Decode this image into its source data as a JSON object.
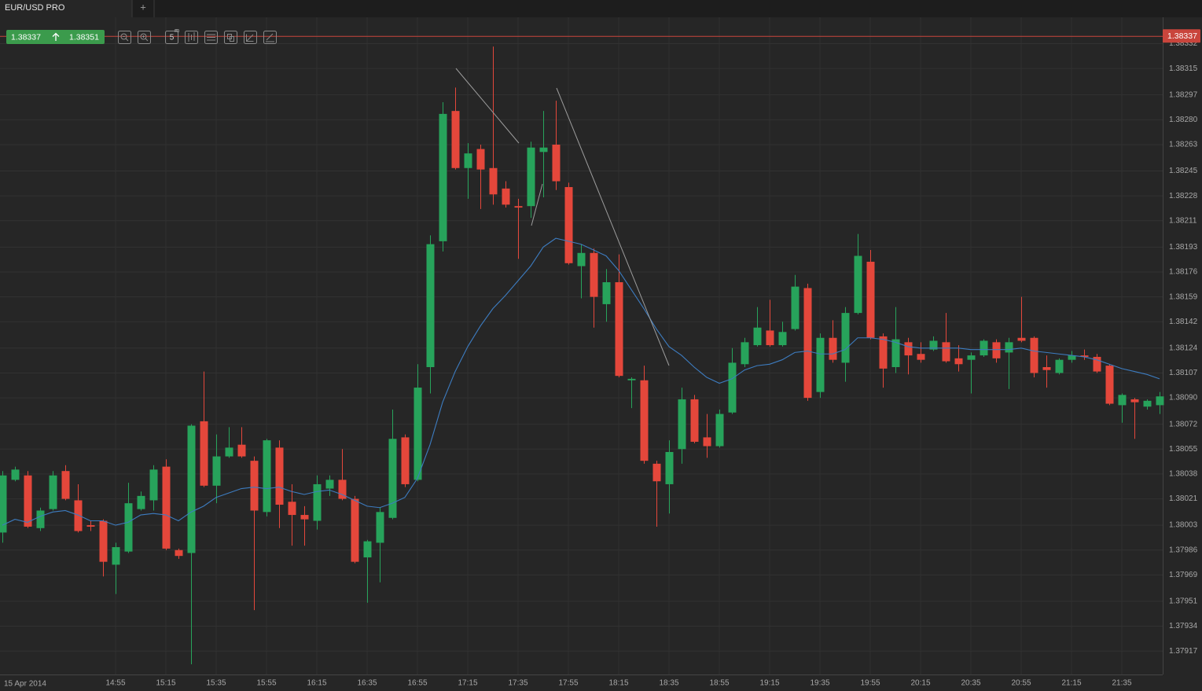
{
  "tab": {
    "title": "EUR/USD PRO",
    "new_tab": "+"
  },
  "quote": {
    "bid": 1.38337,
    "ask": 1.38351
  },
  "toolbar": {
    "interval": "5",
    "interval_unit": "m"
  },
  "chart_data": {
    "type": "candlestick",
    "date_label": "15 Apr 2014",
    "categories": [
      null,
      null,
      null,
      null,
      null,
      null,
      null,
      null,
      null,
      "14:55",
      null,
      null,
      null,
      "15:15",
      null,
      null,
      null,
      "15:35",
      null,
      null,
      null,
      "15:55",
      null,
      null,
      null,
      "16:15",
      null,
      null,
      null,
      "16:35",
      null,
      null,
      null,
      "16:55",
      null,
      null,
      null,
      "17:15",
      null,
      null,
      null,
      "17:35",
      null,
      null,
      null,
      "17:55",
      null,
      null,
      null,
      "18:15",
      null,
      null,
      null,
      "18:35",
      null,
      null,
      null,
      "18:55",
      null,
      null,
      null,
      "19:15",
      null,
      null,
      null,
      "19:35",
      null,
      null,
      null,
      "19:55",
      null,
      null,
      null,
      "20:15",
      null,
      null,
      null,
      "20:35",
      null,
      null,
      null,
      "20:55",
      null,
      null,
      null,
      "21:15",
      null,
      null,
      null,
      "21:35",
      null,
      null,
      null
    ],
    "open": [
      1.37998,
      1.38034,
      1.38037,
      1.38001,
      1.38014,
      1.3804,
      1.3802,
      1.38003,
      1.38006,
      1.37976,
      1.37985,
      1.38014,
      1.3802,
      1.38043,
      1.37986,
      1.37984,
      1.38074,
      1.3803,
      1.3805,
      1.38058,
      1.38047,
      1.38012,
      1.38056,
      1.38019,
      1.3801,
      1.38006,
      1.38028,
      1.38034,
      1.38021,
      1.37981,
      1.37991,
      1.38008,
      1.38063,
      1.38034,
      1.38111,
      1.38197,
      1.38286,
      1.38247,
      1.3826,
      1.38247,
      1.38233,
      1.38221,
      1.38221,
      1.38258,
      1.38263,
      1.38234,
      1.3818,
      1.38189,
      1.38154,
      1.38169,
      1.38102,
      1.38102,
      1.38045,
      1.38031,
      1.38055,
      1.38089,
      1.38063,
      1.38057,
      1.3808,
      1.38113,
      1.38126,
      1.38136,
      1.38126,
      1.38137,
      1.38165,
      1.38094,
      1.38131,
      1.38114,
      1.38148,
      1.38183,
      1.38132,
      1.38111,
      1.38128,
      1.3812,
      1.38123,
      1.38128,
      1.38117,
      1.38116,
      1.38119,
      1.38128,
      1.38121,
      1.38131,
      1.38131,
      1.38111,
      1.38107,
      1.38116,
      1.38119,
      1.38118,
      1.38112,
      1.38085,
      1.38089,
      1.38084,
      1.38085
    ],
    "high": [
      1.3804,
      1.38043,
      1.3804,
      1.38015,
      1.3804,
      1.38044,
      1.38031,
      1.38006,
      1.38007,
      1.37991,
      1.38032,
      1.38026,
      1.38044,
      1.38048,
      1.37987,
      1.38072,
      1.38108,
      1.38065,
      1.3807,
      1.3807,
      1.3805,
      1.38062,
      1.38061,
      1.38031,
      1.38016,
      1.38037,
      1.38037,
      1.38055,
      1.38023,
      1.37993,
      1.38015,
      1.38082,
      1.38065,
      1.38113,
      1.38201,
      1.38292,
      1.38302,
      1.38264,
      1.38263,
      1.3833,
      1.38238,
      1.38226,
      1.38265,
      1.38286,
      1.38293,
      1.38237,
      1.38195,
      1.38192,
      1.38178,
      1.38188,
      1.38104,
      1.38112,
      1.38047,
      1.38061,
      1.38097,
      1.38092,
      1.38079,
      1.38082,
      1.38124,
      1.38131,
      1.38152,
      1.38157,
      1.38142,
      1.38174,
      1.38168,
      1.38134,
      1.38143,
      1.38152,
      1.38202,
      1.38191,
      1.38134,
      1.38152,
      1.38131,
      1.38128,
      1.38132,
      1.38148,
      1.38126,
      1.38121,
      1.3813,
      1.3813,
      1.38131,
      1.38159,
      1.38132,
      1.38119,
      1.38117,
      1.38122,
      1.38123,
      1.3812,
      1.38113,
      1.38093,
      1.3809,
      1.38089,
      1.38094
    ],
    "low": [
      1.37991,
      1.38033,
      1.38001,
      1.37999,
      1.38013,
      1.3802,
      1.37998,
      1.37999,
      1.37968,
      1.37956,
      1.37984,
      1.38013,
      1.38013,
      1.37986,
      1.3798,
      1.37908,
      1.38029,
      1.38018,
      1.38049,
      1.38049,
      1.37945,
      1.38009,
      1.38001,
      1.37989,
      1.37989,
      1.38,
      1.38023,
      1.3802,
      1.37977,
      1.3795,
      1.37964,
      1.38007,
      1.38029,
      1.38033,
      1.38093,
      1.3819,
      1.38246,
      1.38226,
      1.38219,
      1.38222,
      1.3822,
      1.38185,
      1.38213,
      1.38227,
      1.38232,
      1.38181,
      1.38158,
      1.38138,
      1.38142,
      1.38104,
      1.38083,
      1.38045,
      1.38002,
      1.38011,
      1.38045,
      1.38059,
      1.38049,
      1.38056,
      1.38079,
      1.38111,
      1.38125,
      1.38125,
      1.38125,
      1.38136,
      1.38088,
      1.3809,
      1.38114,
      1.38101,
      1.38147,
      1.3813,
      1.38097,
      1.38107,
      1.38106,
      1.38114,
      1.38122,
      1.38114,
      1.38108,
      1.38093,
      1.38118,
      1.38114,
      1.38096,
      1.38128,
      1.38104,
      1.38097,
      1.38106,
      1.38114,
      1.38116,
      1.38107,
      1.38085,
      1.38073,
      1.38062,
      1.38082,
      1.38079
    ],
    "close": [
      1.38037,
      1.38041,
      1.38002,
      1.38013,
      1.38037,
      1.38021,
      1.37999,
      1.38002,
      1.37978,
      1.37988,
      1.38018,
      1.38023,
      1.38041,
      1.37987,
      1.37982,
      1.38071,
      1.3803,
      1.3805,
      1.38056,
      1.3805,
      1.38013,
      1.38061,
      1.38017,
      1.3801,
      1.38007,
      1.38031,
      1.38034,
      1.38021,
      1.37978,
      1.37992,
      1.38012,
      1.38062,
      1.38031,
      1.38097,
      1.38195,
      1.38284,
      1.38247,
      1.38257,
      1.38246,
      1.38229,
      1.38222,
      1.3822,
      1.38261,
      1.38261,
      1.38238,
      1.38182,
      1.38189,
      1.38159,
      1.38169,
      1.38105,
      1.38103,
      1.38047,
      1.38033,
      1.38053,
      1.38089,
      1.3806,
      1.38057,
      1.38079,
      1.38114,
      1.38128,
      1.38138,
      1.38126,
      1.38135,
      1.38166,
      1.3809,
      1.38131,
      1.38116,
      1.38148,
      1.38187,
      1.38131,
      1.3811,
      1.3813,
      1.38119,
      1.38116,
      1.38129,
      1.38115,
      1.38113,
      1.38119,
      1.38129,
      1.38117,
      1.38128,
      1.38129,
      1.38107,
      1.38109,
      1.38116,
      1.38119,
      1.38118,
      1.38108,
      1.38086,
      1.38092,
      1.38087,
      1.38088,
      1.38091
    ],
    "ma": {
      "color": "#3d7cc0",
      "values": [
        1.38003,
        1.38007,
        1.38005,
        1.38009,
        1.38012,
        1.38013,
        1.3801,
        1.38006,
        1.38006,
        1.38003,
        1.38005,
        1.3801,
        1.38011,
        1.3801,
        1.38006,
        1.38012,
        1.38016,
        1.38022,
        1.38025,
        1.38028,
        1.38029,
        1.38028,
        1.38029,
        1.38026,
        1.38024,
        1.38026,
        1.38027,
        1.38024,
        1.3802,
        1.38016,
        1.38015,
        1.38018,
        1.38022,
        1.38035,
        1.38058,
        1.38087,
        1.38108,
        1.38125,
        1.38139,
        1.38151,
        1.3816,
        1.3817,
        1.3818,
        1.38193,
        1.38199,
        1.38197,
        1.38195,
        1.38191,
        1.38187,
        1.38177,
        1.38164,
        1.38151,
        1.38137,
        1.38125,
        1.38119,
        1.38111,
        1.38104,
        1.381,
        1.38103,
        1.38109,
        1.38112,
        1.38113,
        1.38116,
        1.38121,
        1.38122,
        1.3812,
        1.3812,
        1.38123,
        1.38131,
        1.38131,
        1.3813,
        1.38128,
        1.38125,
        1.38124,
        1.38124,
        1.38124,
        1.38124,
        1.38123,
        1.38123,
        1.38123,
        1.38123,
        1.38124,
        1.38122,
        1.38121,
        1.3812,
        1.38119,
        1.38118,
        1.38116,
        1.38113,
        1.3811,
        1.38108,
        1.38106,
        1.38103
      ]
    },
    "colors": {
      "up": "#27a35b",
      "down": "#e4473b"
    },
    "last_price": 1.38337,
    "last_price_color": "#c9453c",
    "ylim": [
      1.37901,
      1.3835
    ],
    "yticks": [
      1.38332,
      1.38315,
      1.38297,
      {
        "value": 1.3828,
        "label": "1.38280"
      },
      1.38263,
      1.38245,
      1.38228,
      1.38211,
      1.38193,
      1.38176,
      1.38159,
      1.38142,
      1.38124,
      1.38107,
      {
        "value": 1.3809,
        "label": "1.38090"
      },
      1.38072,
      1.38055,
      1.38038,
      1.38021,
      1.38003,
      1.37986,
      1.37969,
      1.37951,
      1.37934,
      1.37917
    ],
    "grid": true,
    "y_axis_side": "right"
  }
}
